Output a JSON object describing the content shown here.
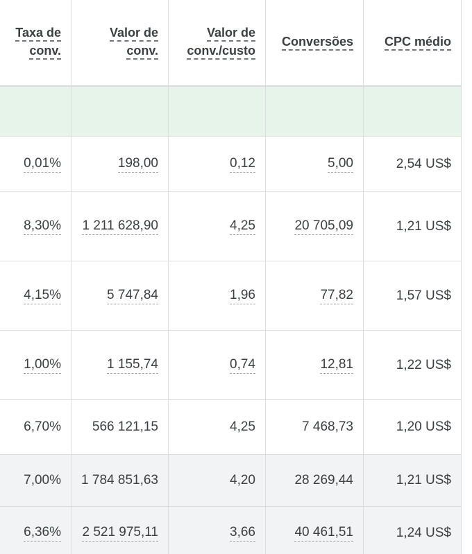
{
  "columns": [
    {
      "line1": "Taxa de",
      "line2": "conv."
    },
    {
      "line1": "Valor de",
      "line2": "conv."
    },
    {
      "line1": "Valor de",
      "line2": "conv./custo"
    },
    {
      "line1": "Conversões",
      "line2": ""
    },
    {
      "line1": "CPC médio",
      "line2": ""
    }
  ],
  "rows": [
    [
      "0,01%",
      "198,00",
      "0,12",
      "5,00",
      "2,54 US$"
    ],
    [
      "8,30%",
      "1 211 628,90",
      "4,25",
      "20 705,09",
      "1,21 US$"
    ],
    [
      "4,15%",
      "5 747,84",
      "1,96",
      "77,82",
      "1,57 US$"
    ],
    [
      "1,00%",
      "1 155,74",
      "0,74",
      "12,81",
      "1,22 US$"
    ],
    [
      "6,70%",
      "566 121,15",
      "4,25",
      "7 468,73",
      "1,20 US$"
    ],
    [
      "7,00%",
      "1 784 851,63",
      "4,20",
      "28 269,44",
      "1,21 US$"
    ],
    [
      "6,36%",
      "2 521 975,11",
      "3,66",
      "40 461,51",
      "1,24 US$"
    ]
  ],
  "colors": {
    "total_row_bg": "#e6f4ea",
    "summary_row_bg": "#f1f3f4",
    "grid_line": "#dadce0",
    "text": "#3c4043"
  }
}
